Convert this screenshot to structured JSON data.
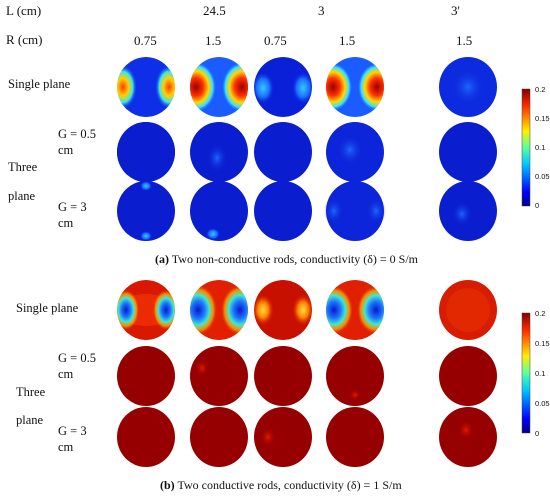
{
  "header": {
    "l_label": "L (cm)",
    "r_label": "R (cm)",
    "l_values": [
      "24.5",
      "3",
      "3'"
    ],
    "r_values": [
      "0.75",
      "1.5",
      "0.75",
      "1.5",
      "1.5"
    ]
  },
  "panel_a": {
    "row_labels": {
      "single": "Single plane",
      "three_line1": "Three",
      "three_line2": "plane",
      "g05_line1": "G = 0.5",
      "g05_line2": "cm",
      "g3_line1": "G = 3",
      "g3_line2": "cm"
    },
    "caption_prefix": "(a)",
    "caption_text": " Two non-conductive rods, conductivity (δ) = 0 S/m",
    "colorbar_ticks": [
      "0.2",
      "0.15",
      "0.1",
      "0.05",
      "0"
    ]
  },
  "panel_b": {
    "row_labels": {
      "single": "Single plane",
      "three_line1": "Three",
      "three_line2": "plane",
      "g05_line1": "G = 0.5",
      "g05_line2": "cm",
      "g3_line1": "G = 3",
      "g3_line2": "cm"
    },
    "caption_prefix": "(b)",
    "caption_text": " Two conductive rods, conductivity (δ) = 1 S/m",
    "colorbar_ticks": [
      "0.2",
      "0.15",
      "0.1",
      "0.05",
      "0"
    ]
  },
  "colors": {
    "low": "#00007f",
    "mid": "#2a6cff",
    "high": "#a80000"
  }
}
